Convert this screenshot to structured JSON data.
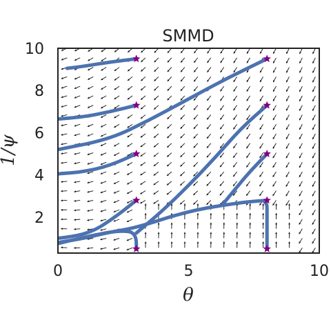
{
  "chart_data": {
    "type": "line",
    "title": "SMMD",
    "xlabel": "θ",
    "ylabel": "1/ψ",
    "xlim": [
      0,
      10
    ],
    "ylim": [
      0.3,
      10
    ],
    "xticks": [
      0,
      5,
      10
    ],
    "yticks": [
      2,
      4,
      6,
      8,
      10
    ],
    "grid": false,
    "legend": "none",
    "colors": {
      "trajectory": "#4c72b0",
      "marker": "#800080",
      "quiver": "#111111",
      "axes": "#222222"
    },
    "start_points": [
      [
        3,
        9.5
      ],
      [
        8,
        9.5
      ],
      [
        3,
        7.3
      ],
      [
        8,
        7.3
      ],
      [
        3,
        5.0
      ],
      [
        8,
        5.0
      ],
      [
        3,
        2.8
      ],
      [
        8,
        2.8
      ],
      [
        3,
        0.5
      ],
      [
        8,
        0.5
      ]
    ],
    "series": [
      {
        "values": [
          [
            3.0,
            9.5
          ],
          [
            2.0,
            9.35
          ],
          [
            1.0,
            9.15
          ],
          [
            0.35,
            9.05
          ]
        ]
      },
      {
        "values": [
          [
            8.0,
            9.5
          ],
          [
            6.5,
            8.6
          ],
          [
            5.0,
            7.6
          ],
          [
            3.5,
            6.6
          ],
          [
            2.0,
            5.7
          ],
          [
            0.0,
            5.2
          ]
        ]
      },
      {
        "values": [
          [
            3.0,
            7.3
          ],
          [
            2.0,
            7.0
          ],
          [
            1.0,
            6.75
          ],
          [
            0.0,
            6.65
          ]
        ]
      },
      {
        "values": [
          [
            8.0,
            7.3
          ],
          [
            7.0,
            6.2
          ],
          [
            6.0,
            4.8
          ],
          [
            5.0,
            3.5
          ],
          [
            4.0,
            2.3
          ],
          [
            3.0,
            1.25
          ]
        ]
      },
      {
        "values": [
          [
            3.0,
            5.0
          ],
          [
            2.0,
            4.45
          ],
          [
            1.0,
            4.15
          ],
          [
            0.0,
            4.05
          ]
        ]
      },
      {
        "values": [
          [
            8.0,
            5.0
          ],
          [
            7.3,
            4.1
          ],
          [
            6.7,
            3.2
          ],
          [
            6.3,
            2.6
          ]
        ]
      },
      {
        "values": [
          [
            3.0,
            2.8
          ],
          [
            2.5,
            2.3
          ],
          [
            2.0,
            1.85
          ],
          [
            1.5,
            1.45
          ],
          [
            1.0,
            1.2
          ],
          [
            0.5,
            1.08
          ],
          [
            0.0,
            1.0
          ]
        ]
      },
      {
        "values": [
          [
            8.0,
            2.8
          ],
          [
            7.0,
            2.7
          ],
          [
            5.0,
            2.3
          ],
          [
            3.0,
            1.5
          ],
          [
            2.0,
            1.3
          ],
          [
            1.0,
            1.0
          ],
          [
            0.0,
            0.8
          ]
        ]
      },
      {
        "values": [
          [
            3.0,
            0.5
          ],
          [
            3.0,
            1.0
          ],
          [
            2.85,
            1.3
          ],
          [
            2.5,
            1.35
          ],
          [
            2.0,
            1.3
          ],
          [
            1.0,
            1.05
          ],
          [
            0.0,
            0.75
          ]
        ]
      },
      {
        "values": [
          [
            8.0,
            0.5
          ],
          [
            8.0,
            1.5
          ],
          [
            8.0,
            2.3
          ],
          [
            8.0,
            2.6
          ],
          [
            7.9,
            2.75
          ]
        ]
      }
    ]
  }
}
